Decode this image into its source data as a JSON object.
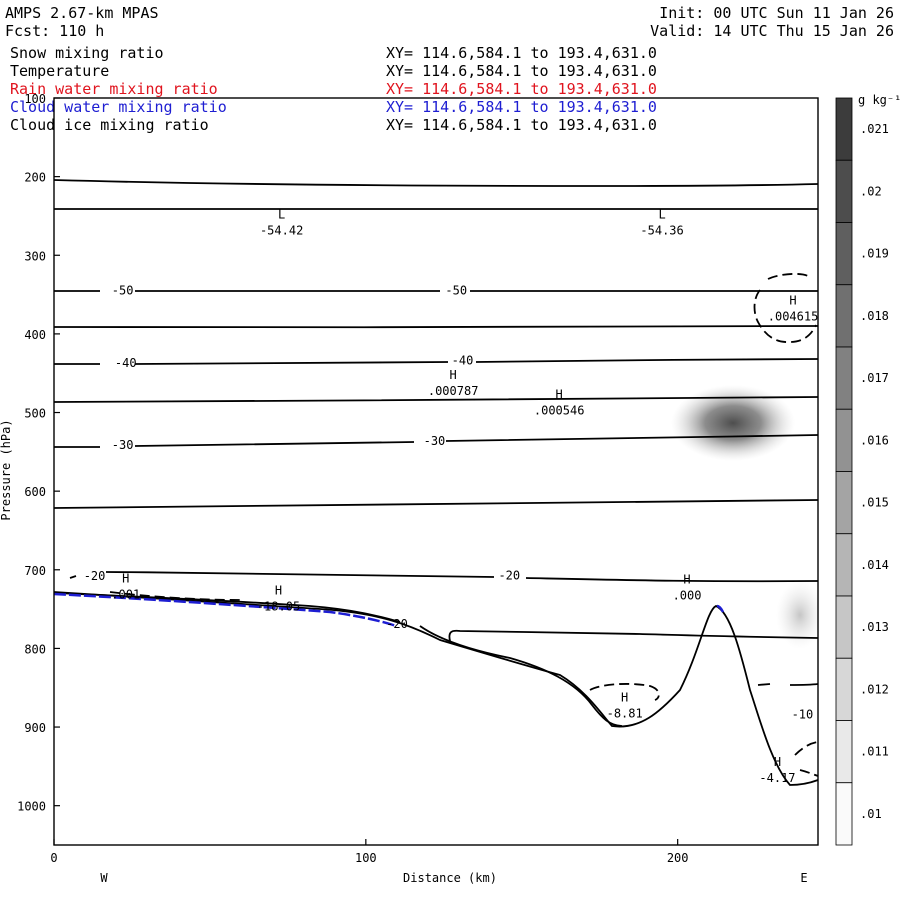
{
  "header": {
    "model": "AMPS 2.67-km MPAS",
    "init": "Init: 00 UTC Sun 11 Jan 26",
    "fcst": "Fcst: 110 h",
    "valid": "Valid: 14 UTC Thu 15 Jan 26"
  },
  "fields": [
    {
      "name": "Snow mixing ratio",
      "xy": "XY= 114.6,584.1 to 193.4,631.0",
      "color": "#000000"
    },
    {
      "name": "Temperature",
      "xy": "XY= 114.6,584.1 to 193.4,631.0",
      "color": "#000000"
    },
    {
      "name": "Rain water mixing ratio",
      "xy": "XY= 114.6,584.1 to 193.4,631.0",
      "color": "#e0141e"
    },
    {
      "name": "Cloud water mixing ratio",
      "xy": "XY= 114.6,584.1 to 193.4,631.0",
      "color": "#1e1ed2"
    },
    {
      "name": "Cloud ice mixing ratio",
      "xy": "XY= 114.6,584.1 to 193.4,631.0",
      "color": "#000000"
    }
  ],
  "chart_data": {
    "type": "contour",
    "xlabel": "Distance (km)",
    "ylabel": "Pressure (hPa)",
    "xlim": [
      0,
      245
    ],
    "ylim": [
      1050,
      100
    ],
    "x_ticks": [
      0,
      100,
      200
    ],
    "y_ticks": [
      100,
      200,
      300,
      400,
      500,
      600,
      700,
      800,
      900,
      1000
    ],
    "left_end_label": "W",
    "right_end_label": "E",
    "colorbar": {
      "unit": "g kg⁻¹",
      "ticks": [
        ".021",
        ".02",
        ".019",
        ".018",
        ".017",
        ".016",
        ".015",
        ".014",
        ".013",
        ".012",
        ".011",
        ".01"
      ]
    },
    "temperature_contour_labels": [
      {
        "text": "-50",
        "x": 22,
        "p": 345
      },
      {
        "text": "-50",
        "x": 129,
        "p": 345
      },
      {
        "text": "-40",
        "x": 23,
        "p": 437
      },
      {
        "text": "-40",
        "x": 131,
        "p": 434
      },
      {
        "text": "-30",
        "x": 22,
        "p": 541
      },
      {
        "text": "-30",
        "x": 122,
        "p": 536
      },
      {
        "text": "-20",
        "x": 13,
        "p": 708
      },
      {
        "text": "-20",
        "x": 146,
        "p": 707
      },
      {
        "text": "-20",
        "x": 110,
        "p": 769
      },
      {
        "text": "-10",
        "x": 240,
        "p": 884
      }
    ],
    "extrema": [
      {
        "type": "L",
        "value": "-54.42",
        "x": 73,
        "p": 261
      },
      {
        "type": "L",
        "value": "-54.36",
        "x": 195,
        "p": 261
      },
      {
        "type": "H",
        "value": ".004615",
        "x": 237,
        "p": 370
      },
      {
        "type": "H",
        "value": ".000787",
        "x": 128,
        "p": 465
      },
      {
        "type": "H",
        "value": ".000546",
        "x": 162,
        "p": 490
      },
      {
        "type": "H",
        "value": ".001",
        "x": 23,
        "p": 724
      },
      {
        "type": "H",
        "value": "-18.05",
        "x": 72,
        "p": 739
      },
      {
        "type": "H",
        "value": ".000",
        "x": 203,
        "p": 725
      },
      {
        "type": "H",
        "value": "-8.81",
        "x": 183,
        "p": 875
      },
      {
        "type": "H",
        "value": "-4.17",
        "x": 232,
        "p": 957
      }
    ]
  }
}
